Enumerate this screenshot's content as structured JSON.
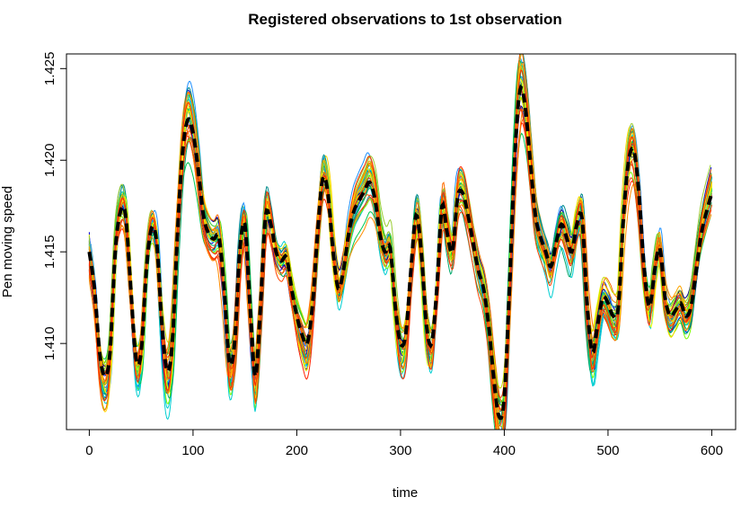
{
  "chart_data": {
    "type": "line",
    "title": "Registered observations to 1st observation",
    "xlabel": "time",
    "ylabel": "Pen moving speed",
    "xlim": [
      -22,
      623
    ],
    "ylim": [
      1.4053,
      1.4258
    ],
    "xticks": [
      0,
      100,
      200,
      300,
      400,
      500,
      600
    ],
    "yticks": [
      1.41,
      1.415,
      1.42,
      1.425
    ],
    "xtick_labels": [
      "0",
      "100",
      "200",
      "300",
      "400",
      "500",
      "600"
    ],
    "ytick_labels": [
      "1.410",
      "1.415",
      "1.420",
      "1.425"
    ],
    "grid": false,
    "legend": "none",
    "mean_curve": {
      "style": "dashed",
      "color": "#000000",
      "points": [
        [
          0,
          1.415
        ],
        [
          5,
          1.413
        ],
        [
          10,
          1.4095
        ],
        [
          15,
          1.4082
        ],
        [
          20,
          1.4095
        ],
        [
          25,
          1.415
        ],
        [
          30,
          1.4172
        ],
        [
          35,
          1.417
        ],
        [
          40,
          1.413
        ],
        [
          45,
          1.4092
        ],
        [
          50,
          1.4095
        ],
        [
          55,
          1.414
        ],
        [
          60,
          1.4163
        ],
        [
          65,
          1.4155
        ],
        [
          70,
          1.411
        ],
        [
          75,
          1.4085
        ],
        [
          80,
          1.41
        ],
        [
          85,
          1.416
        ],
        [
          90,
          1.4205
        ],
        [
          95,
          1.4222
        ],
        [
          100,
          1.4215
        ],
        [
          105,
          1.4195
        ],
        [
          110,
          1.417
        ],
        [
          115,
          1.416
        ],
        [
          120,
          1.4157
        ],
        [
          125,
          1.4158
        ],
        [
          130,
          1.413
        ],
        [
          135,
          1.409
        ],
        [
          140,
          1.41
        ],
        [
          145,
          1.415
        ],
        [
          150,
          1.4165
        ],
        [
          155,
          1.412
        ],
        [
          160,
          1.4082
        ],
        [
          165,
          1.412
        ],
        [
          170,
          1.417
        ],
        [
          175,
          1.4165
        ],
        [
          180,
          1.415
        ],
        [
          185,
          1.4145
        ],
        [
          190,
          1.4147
        ],
        [
          195,
          1.413
        ],
        [
          200,
          1.4115
        ],
        [
          205,
          1.4105
        ],
        [
          210,
          1.41
        ],
        [
          215,
          1.412
        ],
        [
          220,
          1.416
        ],
        [
          225,
          1.419
        ],
        [
          230,
          1.4182
        ],
        [
          235,
          1.415
        ],
        [
          240,
          1.413
        ],
        [
          245,
          1.414
        ],
        [
          250,
          1.416
        ],
        [
          255,
          1.4172
        ],
        [
          260,
          1.4178
        ],
        [
          265,
          1.4183
        ],
        [
          270,
          1.4188
        ],
        [
          275,
          1.418
        ],
        [
          280,
          1.416
        ],
        [
          285,
          1.415
        ],
        [
          290,
          1.4152
        ],
        [
          295,
          1.412
        ],
        [
          300,
          1.41
        ],
        [
          305,
          1.4105
        ],
        [
          310,
          1.414
        ],
        [
          315,
          1.417
        ],
        [
          320,
          1.415
        ],
        [
          325,
          1.411
        ],
        [
          330,
          1.41
        ],
        [
          335,
          1.413
        ],
        [
          340,
          1.4175
        ],
        [
          345,
          1.416
        ],
        [
          350,
          1.415
        ],
        [
          355,
          1.418
        ],
        [
          360,
          1.4182
        ],
        [
          365,
          1.417
        ],
        [
          370,
          1.4155
        ],
        [
          375,
          1.414
        ],
        [
          380,
          1.413
        ],
        [
          385,
          1.411
        ],
        [
          390,
          1.408
        ],
        [
          395,
          1.406
        ],
        [
          400,
          1.407
        ],
        [
          405,
          1.413
        ],
        [
          410,
          1.42
        ],
        [
          415,
          1.4238
        ],
        [
          420,
          1.423
        ],
        [
          425,
          1.42
        ],
        [
          430,
          1.417
        ],
        [
          435,
          1.4158
        ],
        [
          440,
          1.415
        ],
        [
          445,
          1.4142
        ],
        [
          450,
          1.4155
        ],
        [
          455,
          1.4165
        ],
        [
          460,
          1.4158
        ],
        [
          465,
          1.415
        ],
        [
          470,
          1.4165
        ],
        [
          475,
          1.4168
        ],
        [
          480,
          1.412
        ],
        [
          485,
          1.4095
        ],
        [
          490,
          1.411
        ],
        [
          495,
          1.4125
        ],
        [
          500,
          1.4122
        ],
        [
          505,
          1.4115
        ],
        [
          510,
          1.412
        ],
        [
          515,
          1.417
        ],
        [
          520,
          1.42
        ],
        [
          525,
          1.4205
        ],
        [
          530,
          1.418
        ],
        [
          535,
          1.414
        ],
        [
          540,
          1.412
        ],
        [
          545,
          1.414
        ],
        [
          550,
          1.4152
        ],
        [
          555,
          1.4125
        ],
        [
          560,
          1.4115
        ],
        [
          565,
          1.4118
        ],
        [
          570,
          1.4122
        ],
        [
          575,
          1.4115
        ],
        [
          580,
          1.412
        ],
        [
          585,
          1.414
        ],
        [
          590,
          1.416
        ],
        [
          595,
          1.4172
        ],
        [
          600,
          1.4182
        ]
      ]
    },
    "observation_colors": [
      "#00008b",
      "#0000cd",
      "#1e90ff",
      "#00bfff",
      "#00ced1",
      "#008b8b",
      "#00a86b",
      "#00c853",
      "#32cd32",
      "#7cfc00",
      "#9acd32",
      "#c8e000",
      "#ffff00",
      "#ffd700",
      "#ffa500",
      "#ff8c00",
      "#ff6a00",
      "#ff4500",
      "#ff2200",
      "#e8410a"
    ],
    "observation_count": 40
  }
}
